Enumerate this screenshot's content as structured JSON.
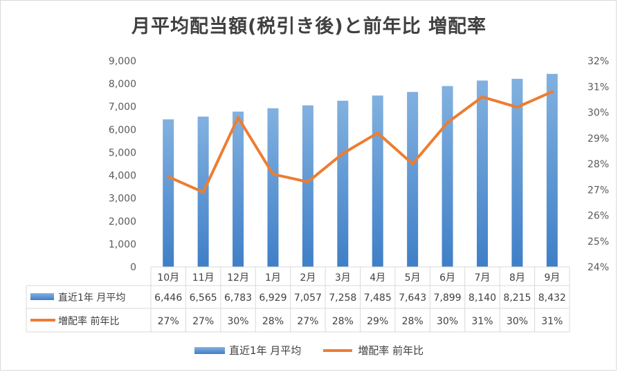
{
  "chart_data": {
    "type": "bar",
    "title": "月平均配当額(税引き後)と前年比 増配率",
    "categories": [
      "10月",
      "11月",
      "12月",
      "1月",
      "2月",
      "3月",
      "4月",
      "5月",
      "6月",
      "7月",
      "8月",
      "9月"
    ],
    "series": [
      {
        "name": "直近1年 月平均",
        "type": "bar",
        "axis": "left",
        "values": [
          6446,
          6565,
          6783,
          6929,
          7057,
          7258,
          7485,
          7643,
          7899,
          8140,
          8215,
          8432
        ],
        "labels": [
          "6,446",
          "6,565",
          "6,783",
          "6,929",
          "7,057",
          "7,258",
          "7,485",
          "7,643",
          "7,899",
          "8,140",
          "8,215",
          "8,432"
        ]
      },
      {
        "name": "増配率 前年比",
        "type": "line",
        "axis": "right",
        "values": [
          27.5,
          26.9,
          29.8,
          27.6,
          27.3,
          28.4,
          29.2,
          28.0,
          29.6,
          30.6,
          30.2,
          30.8
        ],
        "labels": [
          "27%",
          "27%",
          "30%",
          "28%",
          "27%",
          "28%",
          "29%",
          "28%",
          "30%",
          "31%",
          "30%",
          "31%"
        ]
      }
    ],
    "y_left": {
      "min": 0,
      "max": 9000,
      "ticks": [
        "0",
        "1,000",
        "2,000",
        "3,000",
        "4,000",
        "5,000",
        "6,000",
        "7,000",
        "8,000",
        "9,000"
      ]
    },
    "y_right": {
      "min": 24,
      "max": 32,
      "ticks": [
        "24%",
        "25%",
        "26%",
        "27%",
        "28%",
        "29%",
        "30%",
        "31%",
        "32%"
      ]
    },
    "data_table": true,
    "legend_position": "bottom",
    "grid": false,
    "colors": {
      "bar_top": "#82b1e0",
      "bar_bottom": "#3f7fc7",
      "line": "#ed7d31",
      "border": "#d9d9d9"
    }
  }
}
